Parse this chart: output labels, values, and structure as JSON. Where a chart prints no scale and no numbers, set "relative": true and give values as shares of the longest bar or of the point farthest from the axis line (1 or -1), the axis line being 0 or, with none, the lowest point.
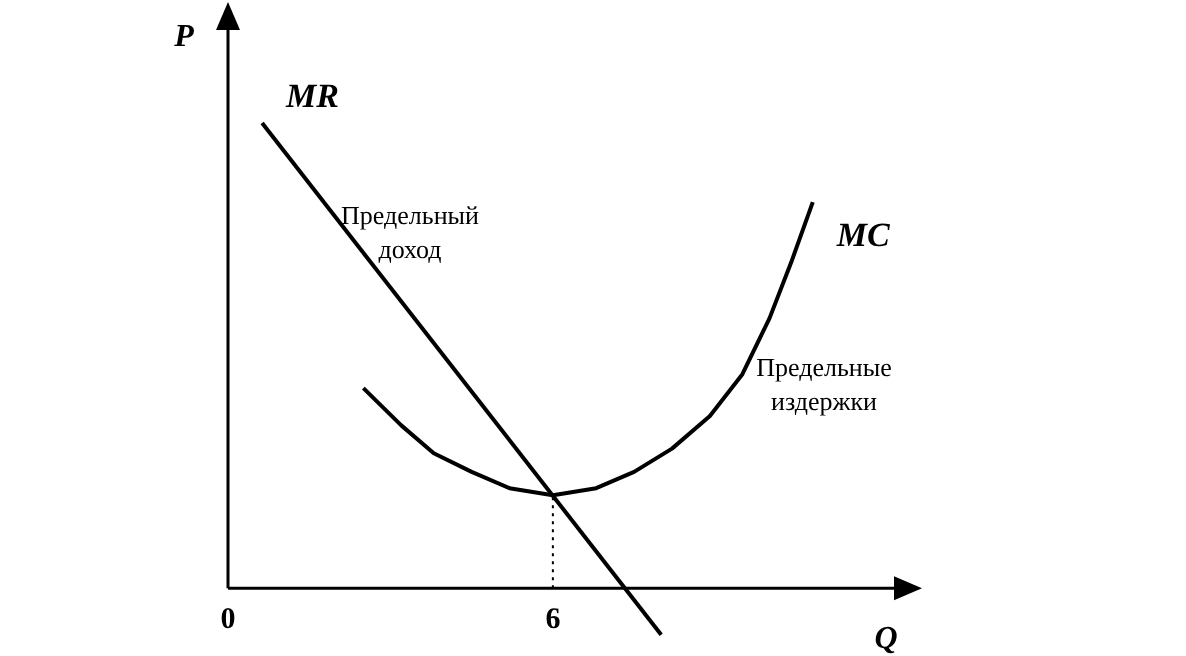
{
  "chart_data": {
    "type": "line",
    "relative": true,
    "xlabel": "Q",
    "ylabel": "P",
    "xlim": [
      0,
      12.3
    ],
    "xticks": [
      0,
      6
    ],
    "series": [
      {
        "name": "MR",
        "color": "#000000",
        "x": [
          0.63,
          8
        ],
        "values": [
          1,
          -0.1
        ]
      },
      {
        "name": "MC",
        "color": "#000000",
        "x": [
          2.5,
          3.2,
          3.8,
          4.5,
          5.2,
          6,
          6.8,
          7.5,
          8.2,
          8.9,
          9.5,
          10,
          10.4,
          10.8
        ],
        "values": [
          0.43,
          0.35,
          0.29,
          0.25,
          0.215,
          0.2,
          0.215,
          0.25,
          0.3,
          0.37,
          0.46,
          0.58,
          0.7,
          0.83
        ]
      }
    ],
    "annotations": [
      "Предельный доход",
      "Предельные издержки"
    ],
    "ref_lines": [
      {
        "axis": "x",
        "value": 6,
        "line_style": "dotted",
        "color": "#000000"
      }
    ],
    "marker": "none"
  }
}
